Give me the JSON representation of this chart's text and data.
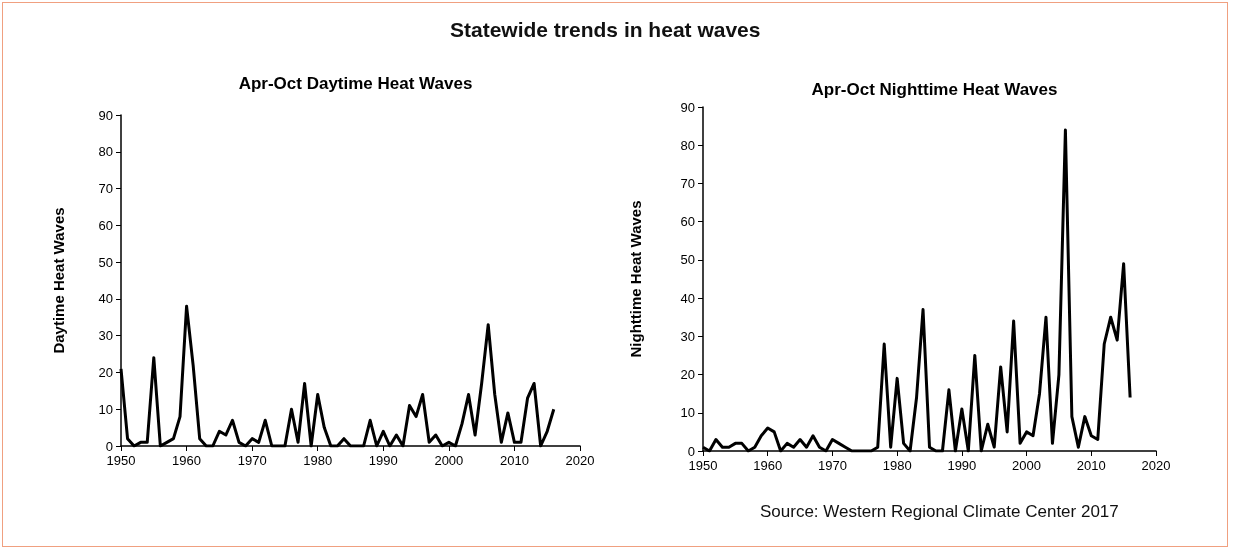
{
  "chart_data": [
    {
      "type": "line",
      "title": "Apr-Oct Daytime Heat Waves",
      "ylabel": "Daytime Heat Waves",
      "annotations": [
        "Statewide trends in heat waves"
      ],
      "x": [
        1950,
        1951,
        1952,
        1953,
        1954,
        1955,
        1956,
        1957,
        1958,
        1959,
        1960,
        1961,
        1962,
        1963,
        1964,
        1965,
        1966,
        1967,
        1968,
        1969,
        1970,
        1971,
        1972,
        1973,
        1974,
        1975,
        1976,
        1977,
        1978,
        1979,
        1980,
        1981,
        1982,
        1983,
        1984,
        1985,
        1986,
        1987,
        1988,
        1989,
        1990,
        1991,
        1992,
        1993,
        1994,
        1995,
        1996,
        1997,
        1998,
        1999,
        2000,
        2001,
        2002,
        2003,
        2004,
        2005,
        2006,
        2007,
        2008,
        2009,
        2010,
        2011,
        2012,
        2013,
        2014,
        2015,
        2016
      ],
      "series": [
        {
          "color": "#000000",
          "values": [
            21,
            2,
            0,
            1,
            1,
            24,
            0,
            1,
            2,
            8,
            38,
            22,
            2,
            0,
            0,
            4,
            3,
            7,
            1,
            0,
            2,
            1,
            7,
            0,
            0,
            0,
            10,
            1,
            17,
            0,
            14,
            5,
            0,
            0,
            2,
            0,
            0,
            0,
            7,
            0,
            4,
            0,
            3,
            0,
            11,
            8,
            14,
            1,
            3,
            0,
            1,
            0,
            6,
            14,
            3,
            17,
            33,
            14,
            1,
            9,
            1,
            1,
            13,
            17,
            0,
            4,
            10
          ]
        }
      ],
      "xlim": [
        1950,
        2020
      ],
      "xticks": [
        1950,
        1960,
        1970,
        1980,
        1990,
        2000,
        2010,
        2020
      ],
      "ylim": [
        0,
        90
      ],
      "yticks": [
        0,
        10,
        20,
        30,
        40,
        50,
        60,
        70,
        80,
        90
      ],
      "grid": false,
      "marker": "none",
      "line_style": "solid"
    },
    {
      "type": "line",
      "title": "Apr-Oct Nighttime Heat Waves",
      "ylabel": "Nighttime Heat Waves",
      "annotations": [
        "Source: Western Regional Climate Center 2017"
      ],
      "x": [
        1950,
        1951,
        1952,
        1953,
        1954,
        1955,
        1956,
        1957,
        1958,
        1959,
        1960,
        1961,
        1962,
        1963,
        1964,
        1965,
        1966,
        1967,
        1968,
        1969,
        1970,
        1971,
        1972,
        1973,
        1974,
        1975,
        1976,
        1977,
        1978,
        1979,
        1980,
        1981,
        1982,
        1983,
        1984,
        1985,
        1986,
        1987,
        1988,
        1989,
        1990,
        1991,
        1992,
        1993,
        1994,
        1995,
        1996,
        1997,
        1998,
        1999,
        2000,
        2001,
        2002,
        2003,
        2004,
        2005,
        2006,
        2007,
        2008,
        2009,
        2010,
        2011,
        2012,
        2013,
        2014,
        2015,
        2016
      ],
      "series": [
        {
          "color": "#000000",
          "values": [
            1,
            0,
            3,
            1,
            1,
            2,
            2,
            0,
            1,
            4,
            6,
            5,
            0,
            2,
            1,
            3,
            1,
            4,
            1,
            0,
            3,
            2,
            1,
            0,
            0,
            0,
            0,
            1,
            28,
            1,
            19,
            2,
            0,
            14,
            37,
            1,
            0,
            0,
            16,
            0,
            11,
            0,
            25,
            0,
            7,
            1,
            22,
            5,
            34,
            2,
            5,
            4,
            15,
            35,
            2,
            20,
            84,
            9,
            1,
            9,
            4,
            3,
            28,
            35,
            29,
            49,
            14
          ]
        }
      ],
      "xlim": [
        1950,
        2020
      ],
      "xticks": [
        1950,
        1960,
        1970,
        1980,
        1990,
        2000,
        2010,
        2020
      ],
      "ylim": [
        0,
        90
      ],
      "yticks": [
        0,
        10,
        20,
        30,
        40,
        50,
        60,
        70,
        80,
        90
      ],
      "grid": false,
      "marker": "none",
      "line_style": "solid"
    }
  ]
}
